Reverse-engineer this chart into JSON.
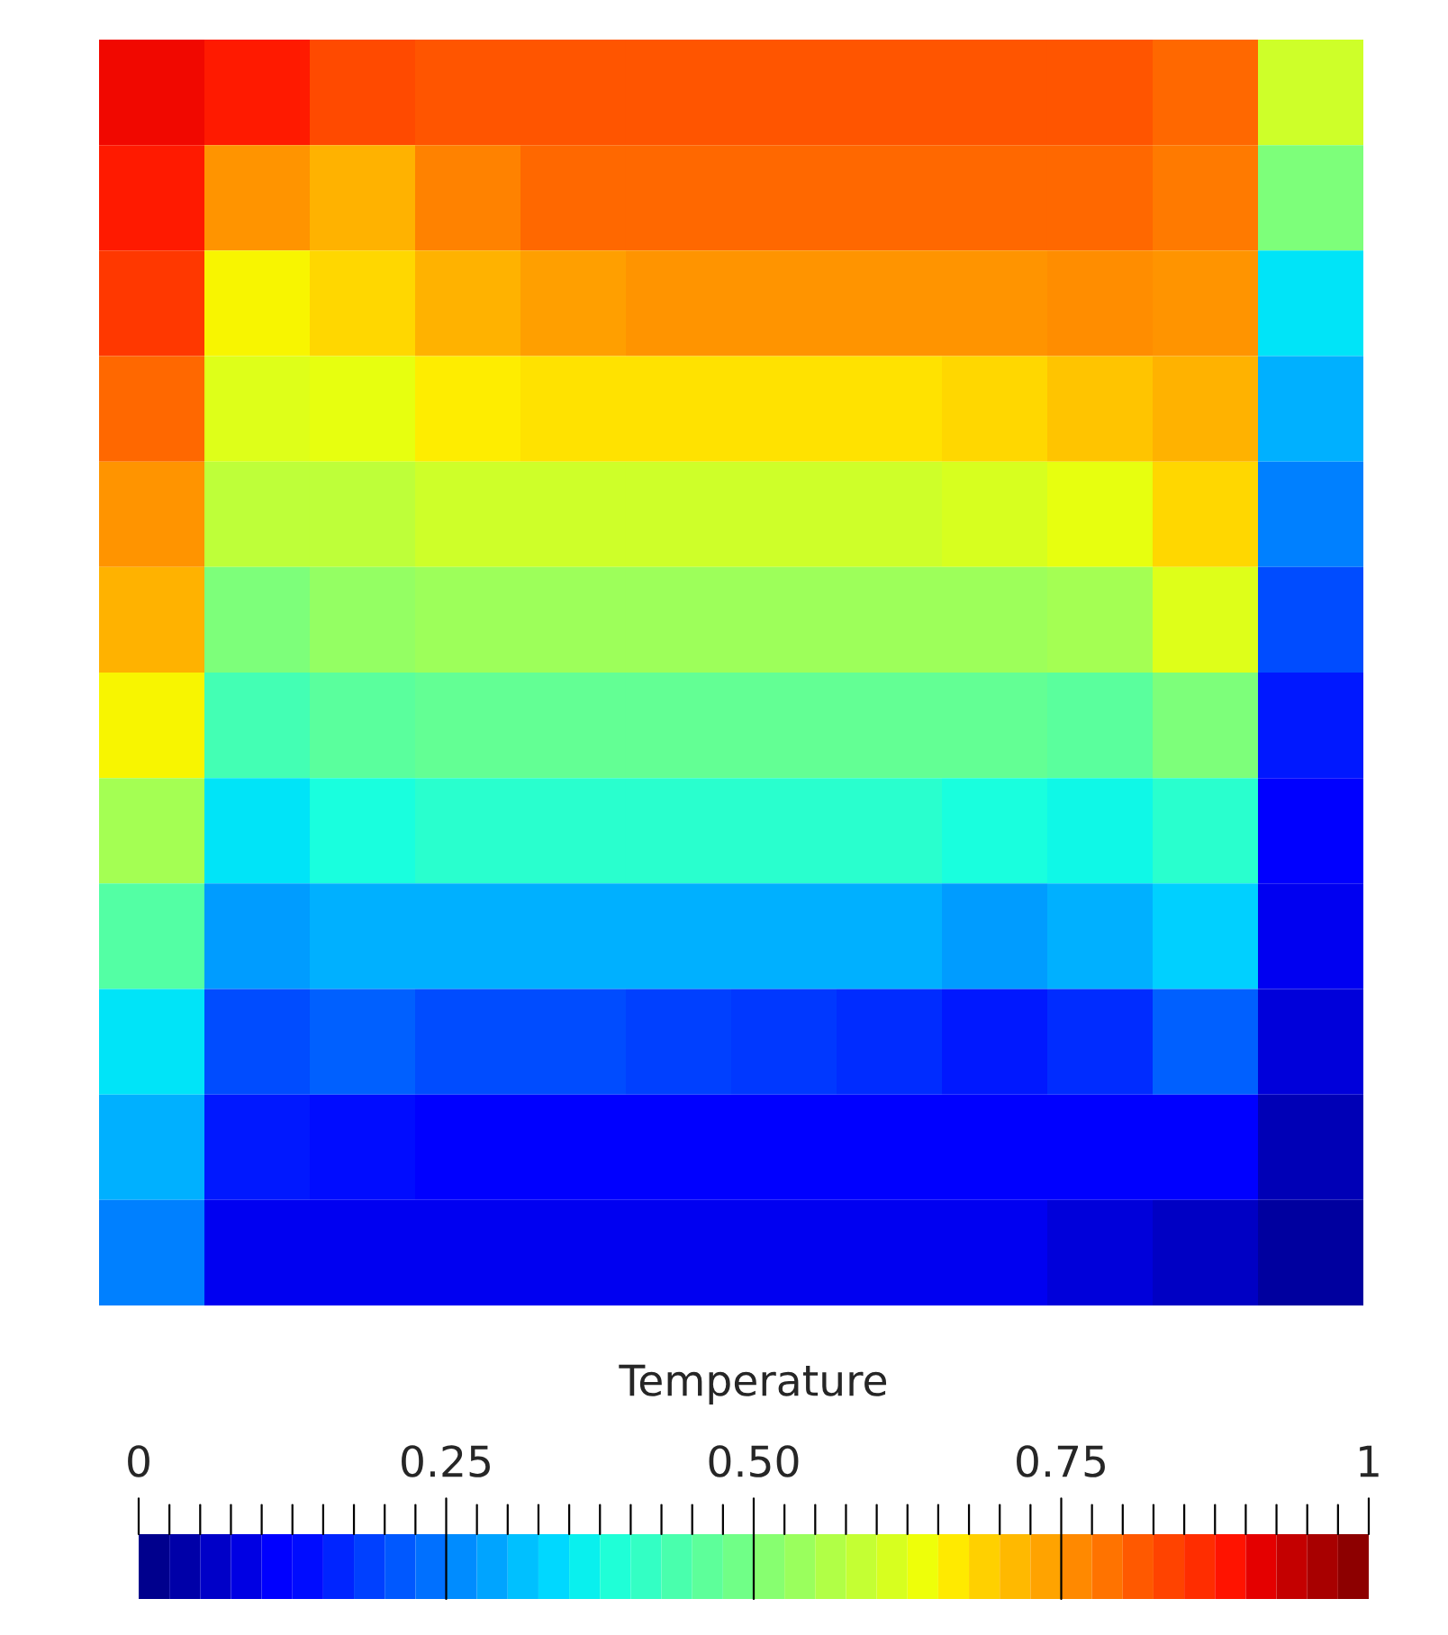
{
  "chart_data": {
    "type": "heatmap",
    "clabel": "Temperature",
    "categories": [
      null,
      null,
      null,
      null,
      null,
      null,
      null,
      null,
      null,
      null,
      null,
      null
    ],
    "y_categories": [
      null,
      null,
      null,
      null,
      null,
      null,
      null,
      null,
      null,
      null,
      null,
      null
    ],
    "cells": [
      [
        0.9,
        0.88,
        0.83,
        0.82,
        0.82,
        0.82,
        0.82,
        0.82,
        0.82,
        0.82,
        0.8,
        0.6
      ],
      [
        0.88,
        0.75,
        0.72,
        0.77,
        0.8,
        0.8,
        0.8,
        0.8,
        0.8,
        0.8,
        0.78,
        0.5
      ],
      [
        0.85,
        0.65,
        0.68,
        0.72,
        0.74,
        0.75,
        0.75,
        0.75,
        0.75,
        0.76,
        0.75,
        0.35
      ],
      [
        0.8,
        0.62,
        0.63,
        0.66,
        0.67,
        0.67,
        0.67,
        0.67,
        0.68,
        0.7,
        0.72,
        0.3
      ],
      [
        0.75,
        0.58,
        0.58,
        0.6,
        0.6,
        0.6,
        0.6,
        0.6,
        0.61,
        0.63,
        0.68,
        0.25
      ],
      [
        0.72,
        0.5,
        0.53,
        0.54,
        0.54,
        0.54,
        0.54,
        0.54,
        0.54,
        0.55,
        0.62,
        0.2
      ],
      [
        0.65,
        0.43,
        0.46,
        0.47,
        0.47,
        0.47,
        0.47,
        0.47,
        0.47,
        0.46,
        0.5,
        0.15
      ],
      [
        0.55,
        0.35,
        0.38,
        0.4,
        0.4,
        0.4,
        0.4,
        0.4,
        0.38,
        0.37,
        0.4,
        0.12
      ],
      [
        0.45,
        0.28,
        0.3,
        0.3,
        0.3,
        0.3,
        0.3,
        0.3,
        0.28,
        0.3,
        0.33,
        0.1
      ],
      [
        0.35,
        0.2,
        0.22,
        0.2,
        0.2,
        0.19,
        0.18,
        0.17,
        0.15,
        0.17,
        0.22,
        0.08
      ],
      [
        0.3,
        0.15,
        0.14,
        0.12,
        0.12,
        0.12,
        0.11,
        0.11,
        0.11,
        0.11,
        0.12,
        0.05
      ],
      [
        0.25,
        0.1,
        0.1,
        0.1,
        0.1,
        0.1,
        0.1,
        0.1,
        0.1,
        0.08,
        0.06,
        0.03
      ]
    ],
    "clim": [
      0,
      1
    ],
    "cticks": [
      0,
      {
        "value": 0.025,
        "label": null
      },
      {
        "value": 0.05,
        "label": null
      },
      {
        "value": 0.075,
        "label": null
      },
      {
        "value": 0.1,
        "label": null
      },
      {
        "value": 0.125,
        "label": null
      },
      {
        "value": 0.15,
        "label": null
      },
      {
        "value": 0.175,
        "label": null
      },
      {
        "value": 0.2,
        "label": null
      },
      {
        "value": 0.225,
        "label": null
      },
      0.25,
      {
        "value": 0.275,
        "label": null
      },
      {
        "value": 0.3,
        "label": null
      },
      {
        "value": 0.325,
        "label": null
      },
      {
        "value": 0.35,
        "label": null
      },
      {
        "value": 0.375,
        "label": null
      },
      {
        "value": 0.4,
        "label": null
      },
      {
        "value": 0.425,
        "label": null
      },
      {
        "value": 0.45,
        "label": null
      },
      {
        "value": 0.475,
        "label": null
      },
      {
        "value": 0.5,
        "label": "0.50"
      },
      {
        "value": 0.525,
        "label": null
      },
      {
        "value": 0.55,
        "label": null
      },
      {
        "value": 0.575,
        "label": null
      },
      {
        "value": 0.6,
        "label": null
      },
      {
        "value": 0.625,
        "label": null
      },
      {
        "value": 0.65,
        "label": null
      },
      {
        "value": 0.675,
        "label": null
      },
      {
        "value": 0.7,
        "label": null
      },
      {
        "value": 0.725,
        "label": null
      },
      0.75,
      {
        "value": 0.775,
        "label": null
      },
      {
        "value": 0.8,
        "label": null
      },
      {
        "value": 0.825,
        "label": null
      },
      {
        "value": 0.85,
        "label": null
      },
      {
        "value": 0.875,
        "label": null
      },
      {
        "value": 0.9,
        "label": null
      },
      {
        "value": 0.925,
        "label": null
      },
      {
        "value": 0.95,
        "label": null
      },
      {
        "value": 0.975,
        "label": null
      },
      1
    ]
  }
}
